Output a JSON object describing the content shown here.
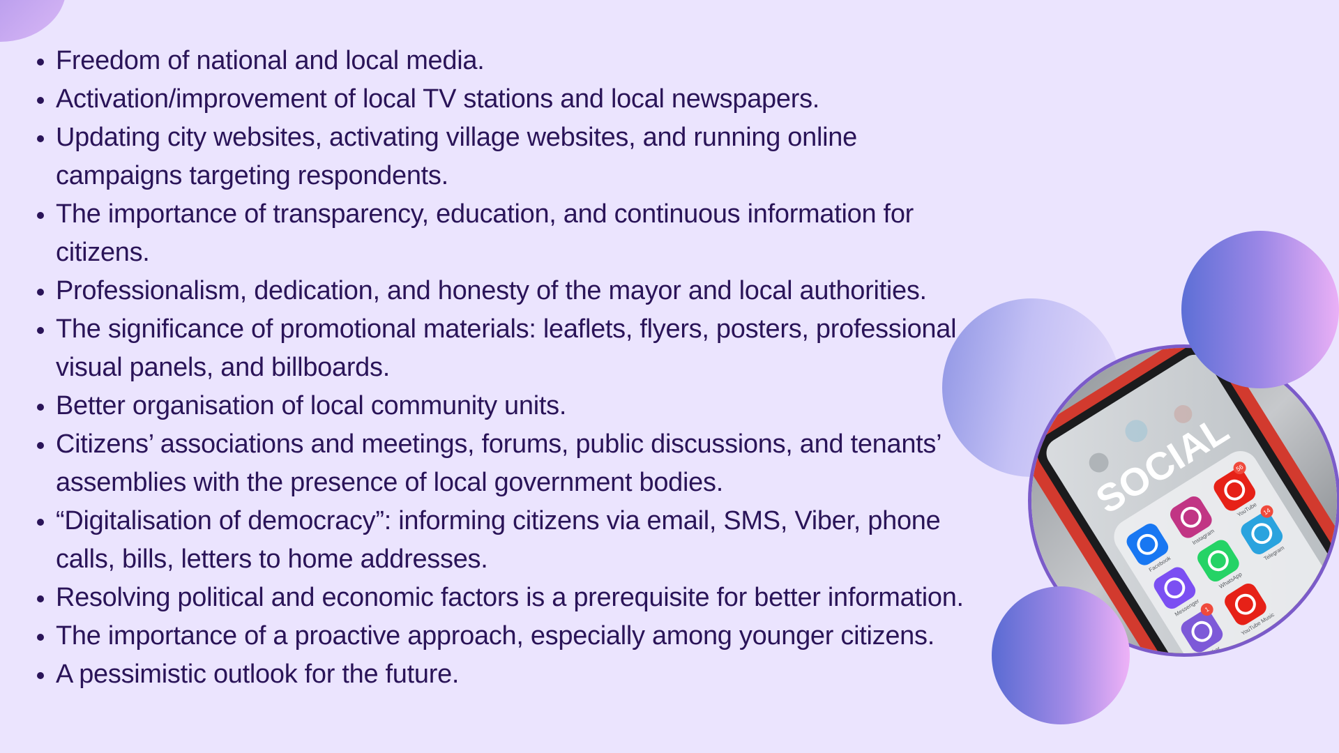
{
  "bullets": [
    "Freedom of national and local media.",
    " Activation/improvement of local TV stations and local newspapers.",
    " Updating city websites, activating village websites, and running online campaigns targeting respondents.",
    " The importance of transparency, education, and continuous information for citizens.",
    " Professionalism, dedication, and honesty of the mayor and local authorities.",
    " The significance of promotional materials: leaflets, flyers, posters, professional visual panels, and billboards.",
    " Better organisation of local community units.",
    " Citizens’ associations and meetings, forums, public discussions, and tenants’ assemblies with the presence of local government bodies.",
    " “Digitalisation of democracy”: informing citizens via email, SMS, Viber, phone calls, bills, letters to home addresses.",
    " Resolving political and economic factors is a prerequisite for better information.",
    " The importance of a proactive approach, especially among younger citizens.",
    " A pessimistic outlook for the future."
  ],
  "photo": {
    "headline": "SOCIAL",
    "apps": [
      {
        "label": "Facebook",
        "icon": "facebook-icon",
        "color": "#1877f2"
      },
      {
        "label": "Instagram",
        "icon": "instagram-icon",
        "color": "#c13584"
      },
      {
        "label": "YouTube",
        "icon": "youtube-icon",
        "color": "#e62117",
        "badge": "56"
      },
      {
        "label": "Messenger",
        "icon": "messenger-icon",
        "color": "#7b4ff2"
      },
      {
        "label": "WhatsApp",
        "icon": "whatsapp-icon",
        "color": "#25d366"
      },
      {
        "label": "Telegram",
        "icon": "telegram-icon",
        "color": "#2aa3de",
        "badge": "14"
      },
      {
        "label": "Viber",
        "icon": "viber-icon",
        "color": "#7d59d8",
        "badge": "1"
      },
      {
        "label": "YouTube Music",
        "icon": "youtube-music-icon",
        "color": "#e62117"
      }
    ]
  }
}
